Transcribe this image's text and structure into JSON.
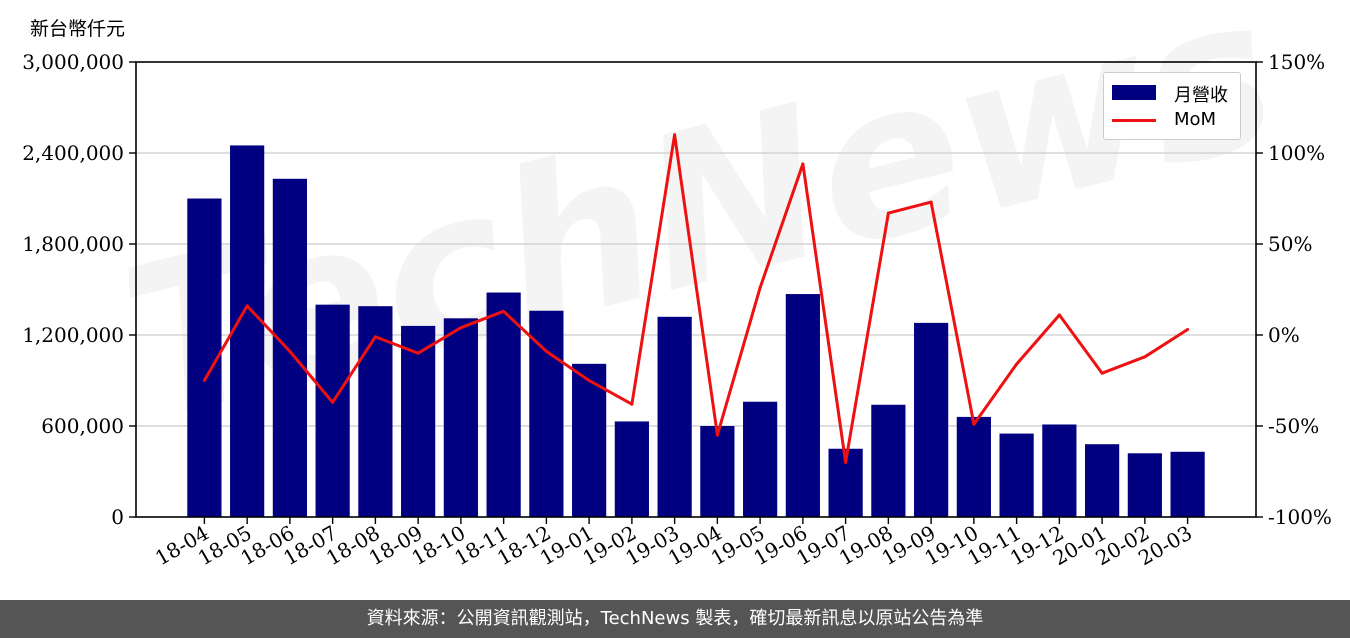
{
  "unit_label": "新台幣仟元",
  "footer_text": "資料來源：公開資訊觀測站，TechNews 製表，確切最新訊息以原站公告為準",
  "colors": {
    "bar": "#000080",
    "line": "#ee1111",
    "grid": "#cccccc",
    "footer_bg": "#555555"
  },
  "legend": {
    "bar_label": "月營收",
    "line_label": "MoM"
  },
  "chart_data": {
    "type": "bar",
    "categories": [
      "18-04",
      "18-05",
      "18-06",
      "18-07",
      "18-08",
      "18-09",
      "18-10",
      "18-11",
      "18-12",
      "19-01",
      "19-02",
      "19-03",
      "19-04",
      "19-05",
      "19-06",
      "19-07",
      "19-08",
      "19-09",
      "19-10",
      "19-11",
      "19-12",
      "20-01",
      "20-02",
      "20-03"
    ],
    "series": [
      {
        "name": "月營收",
        "axis": "left",
        "type": "bar",
        "values": [
          2100000,
          2450000,
          2230000,
          1400000,
          1390000,
          1260000,
          1310000,
          1480000,
          1360000,
          1010000,
          630000,
          1320000,
          600000,
          760000,
          1470000,
          450000,
          740000,
          1280000,
          660000,
          550000,
          610000,
          480000,
          420000,
          430000
        ]
      },
      {
        "name": "MoM",
        "axis": "right",
        "type": "line",
        "values": [
          -25,
          16,
          -9,
          -37,
          -1,
          -10,
          4,
          13,
          -9,
          -25,
          -38,
          110,
          -55,
          26,
          94,
          -70,
          67,
          73,
          -49,
          -16,
          11,
          -21,
          -12,
          3
        ]
      }
    ],
    "y_left": {
      "ylim": [
        0,
        3000000
      ],
      "ticks": [
        0,
        600000,
        1200000,
        1800000,
        2400000,
        3000000
      ],
      "tick_labels": [
        "0",
        "600,000",
        "1,200,000",
        "1,800,000",
        "2,400,000",
        "3,000,000"
      ]
    },
    "y_right": {
      "ylim": [
        -100,
        150
      ],
      "ticks": [
        -100,
        -50,
        0,
        50,
        100,
        150
      ],
      "tick_labels": [
        "-100%",
        "-50%",
        "0%",
        "50%",
        "100%",
        "150%"
      ]
    },
    "grid": "horizontal",
    "legend_position": "top-right",
    "watermark": "TechNews"
  }
}
